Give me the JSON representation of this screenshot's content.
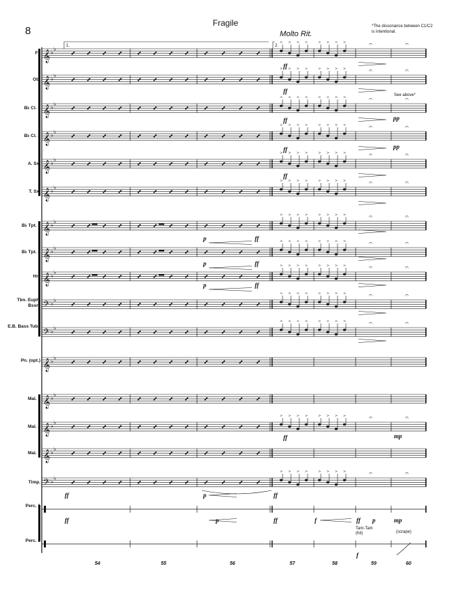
{
  "page": {
    "number": "8",
    "title": "Fragile",
    "tempo": "Molto Rit.",
    "footnote": "*The dissonance between C1/C2 is intentional."
  },
  "volta": {
    "first": "1.",
    "second": "2."
  },
  "instruments": [
    {
      "label": "Fl."
    },
    {
      "label": "Ob."
    },
    {
      "label": "B♭ Cl. 1"
    },
    {
      "label": "B♭ Cl. 2"
    },
    {
      "label": "A. Sx."
    },
    {
      "label": "T. Sx."
    },
    {
      "label": "B♭ Tpt. 1"
    },
    {
      "label": "B♭ Tpt. 2"
    },
    {
      "label": "Hn."
    },
    {
      "label": "Tbn. Euph. Bssn."
    },
    {
      "label": "E.B. Bass Tuba"
    },
    {
      "label": "Pn. (opt.)"
    },
    {
      "label": "Mal. 1"
    },
    {
      "label": "Mal. 2"
    },
    {
      "label": "Mal. 3"
    },
    {
      "label": "Timp."
    },
    {
      "label": "Perc. 1"
    },
    {
      "label": "Perc. 2"
    }
  ],
  "measures": [
    "54",
    "55",
    "56",
    "57",
    "58",
    "59",
    "60"
  ],
  "annotations": {
    "see_above": "See above*",
    "tam_tam": "Tam-Tam (hit)",
    "scrape": "(scrape)"
  },
  "dynamics": {
    "ff": "ff",
    "f": "f",
    "p": "p",
    "pp": "pp",
    "mp": "mp"
  }
}
